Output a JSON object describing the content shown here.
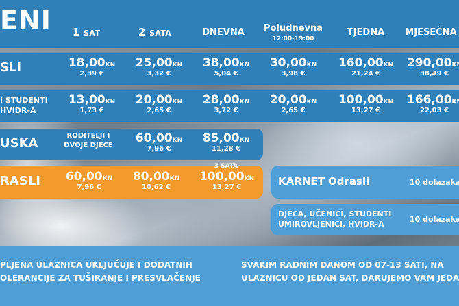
{
  "header": {
    "title": "ENI",
    "cols": [
      {
        "main": "1",
        "small": "SAT"
      },
      {
        "main": "2",
        "small": "SATA"
      },
      {
        "main": "DNEVNA",
        "small": ""
      },
      {
        "main": "Poludnevna",
        "small": ""
      },
      {
        "main": "TJEDNA",
        "small": ""
      },
      {
        "main": "MJESEČNA",
        "small": ""
      }
    ],
    "poludnevna_hours": "12:00-19:00"
  },
  "rows": {
    "odrasli": {
      "label": "SLI",
      "prices": [
        {
          "kn": "18,00",
          "eur": "2,39 €"
        },
        {
          "kn": "25,00",
          "eur": "3,32 €"
        },
        {
          "kn": "38,00",
          "eur": "5,04 €"
        },
        {
          "kn": "30,00",
          "eur": "3,98 €"
        },
        {
          "kn": "160,00",
          "eur": "21,24 €"
        },
        {
          "kn": "290,00",
          "eur": "38,49 €"
        }
      ]
    },
    "studenti": {
      "label_line1": "I STUDENTI",
      "label_line2": "HVIDR-A",
      "prices": [
        {
          "kn": "13,00",
          "eur": "1,73 €"
        },
        {
          "kn": "20,00",
          "eur": "2,65 €"
        },
        {
          "kn": "28,00",
          "eur": "3,72 €"
        },
        {
          "kn": "20,00",
          "eur": "2,65 €"
        },
        {
          "kn": "100,00",
          "eur": "13,27 €"
        },
        {
          "kn": "166,00",
          "eur": "22,03 €"
        }
      ]
    },
    "obiteljska": {
      "label": "USKA",
      "group_line1": "RODITELJI I",
      "group_line2": "DVOJE DJECE",
      "prices": [
        {
          "kn": "60,00",
          "eur": "7,96 €"
        },
        {
          "kn": "85,00",
          "eur": "11,28 €"
        }
      ]
    },
    "grupa": {
      "label": "RASLI",
      "third_note": "3 SATA",
      "prices": [
        {
          "kn": "60,00",
          "eur": "7,96 €"
        },
        {
          "kn": "80,00",
          "eur": "10,62 €"
        },
        {
          "kn": "100,00",
          "eur": "13,27 €"
        }
      ]
    }
  },
  "currency_kn": "KN",
  "karnet": {
    "odrasli_label": "KARNET Odrasli",
    "odrasli_count": "10 dolazaka",
    "djeca_line1": "DJECA, UČENICI, STUDENTI",
    "djeca_line2": "UMIROVLJENICI, HVIDR-A",
    "djeca_count": "10 dolazaka"
  },
  "notes": {
    "left_line1": "PLJENA ULAZNICA UKLJUČUJE I DODATNIH",
    "left_line2": "OLERANCIJE ZA TUŠIRANJE I PRESVLAČENJE",
    "right_line1": "SVAKIM RADNIM DANOM OD 07-13 SATI, NA",
    "right_line2": "ULAZNICU OD JEDAN SAT, DARUJEMO VAM JEDA"
  },
  "colors": {
    "blue": "#2f7fb9",
    "orange": "#f39a2d",
    "light_blue": "#4f9ed6"
  }
}
